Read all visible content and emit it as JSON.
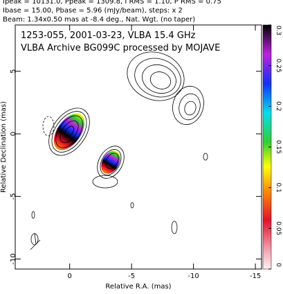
{
  "header": {
    "line1": "Ipeak = 10131.0, Ppeak = 1309.8, I RMS = 1.10, P RMS = 0.75",
    "line2": "Ibase = 15.00, Pbase = 5.96 (mJy/beam), steps: x 2",
    "line3": "Beam: 1.34x0.50 mas at -8.4 deg., Nat. Wgt. (no taper)"
  },
  "chart_data": {
    "type": "contour",
    "title": "1253-055, 2001-03-23, VLBA 15.4 GHz",
    "subtitle": "VLBA Archive BG099C processed by MOJAVE",
    "x_label": "Relative R.A. (mas)",
    "y_label": "Relative Declination (mas)",
    "xlim": [
      4.4,
      -15.5
    ],
    "xticks": [
      0,
      -5,
      -10,
      -15
    ],
    "ylim": [
      -10.8,
      8.7
    ],
    "yticks": [
      5,
      0,
      -5,
      -10
    ],
    "colorbar": {
      "lim": [
        0,
        0.3
      ],
      "ticks": [
        0,
        0.05,
        0.1,
        0.15,
        0.2,
        0.25,
        0.3
      ]
    }
  }
}
